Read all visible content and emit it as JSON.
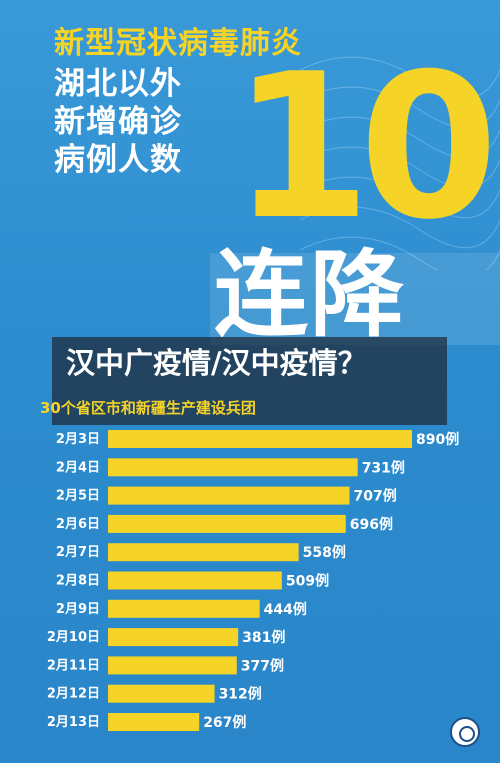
{
  "poster": {
    "headline_lines": [
      "新型冠状病毒肺炎",
      "湖北以外",
      "新增确诊",
      "病例人数"
    ],
    "big_number": "10",
    "streak_label": "连降",
    "overlay_title": "汉中广疫情/汉中疫情？",
    "subtitle": "30个省区市和新疆生产建设兵团",
    "colors": {
      "background": "#2e8fd0",
      "accent": "#f5d327",
      "text": "#ffffff",
      "overlay": "#1e2837"
    }
  },
  "chart_data": {
    "type": "bar",
    "orientation": "horizontal",
    "title": "",
    "categories": [
      "2月3日",
      "2月4日",
      "2月5日",
      "2月6日",
      "2月7日",
      "2月8日",
      "2月9日",
      "2月10日",
      "2月11日",
      "2月12日",
      "2月13日"
    ],
    "values": [
      890,
      731,
      707,
      696,
      558,
      509,
      444,
      381,
      377,
      312,
      267
    ],
    "data_labels": [
      "890例",
      "731例",
      "707例",
      "696例",
      "558例",
      "509例",
      "444例",
      "381例",
      "377例",
      "312例",
      "267例"
    ],
    "bar_color": "#f5d327",
    "xlim": [
      0,
      890
    ],
    "grid": false,
    "legend": "none"
  }
}
